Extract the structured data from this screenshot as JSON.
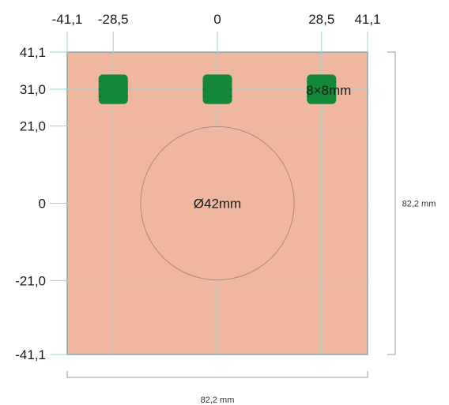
{
  "plate": {
    "fill": "#f0b7a0",
    "stroke": "#555555",
    "x_range": [
      -41.1,
      41.1
    ],
    "y_range": [
      -41.1,
      41.1
    ]
  },
  "x_ticks": [
    {
      "value": -41.1,
      "label": "-41,1"
    },
    {
      "value": -28.5,
      "label": "-28,5"
    },
    {
      "value": 0,
      "label": "0"
    },
    {
      "value": 28.5,
      "label": "28,5"
    },
    {
      "value": 41.1,
      "label": "41,1"
    }
  ],
  "y_ticks": [
    {
      "value": 41.1,
      "label": "41,1"
    },
    {
      "value": 31.0,
      "label": "31,0"
    },
    {
      "value": 21.0,
      "label": "21,0"
    },
    {
      "value": 0,
      "label": "0"
    },
    {
      "value": -21.0,
      "label": "-21,0"
    },
    {
      "value": -41.1,
      "label": "-41,1"
    }
  ],
  "grid_color": "#9cd3d8",
  "pads": {
    "fill": "#13873a",
    "size_mm": 8,
    "centers": [
      [
        -28.5,
        31.0
      ],
      [
        0,
        31.0
      ],
      [
        28.5,
        31.0
      ]
    ],
    "label": "8×8mm"
  },
  "circle": {
    "center": [
      0,
      0
    ],
    "diameter_mm": 42,
    "label": "Ø42mm"
  },
  "dimensions": {
    "width_label": "82,2 mm",
    "height_label": "82,2 mm"
  }
}
